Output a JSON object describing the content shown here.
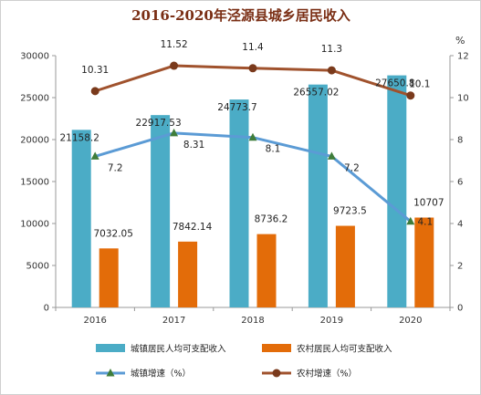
{
  "chart_data": {
    "type": "bar",
    "title": "2016-2020年泾源县城乡居民收入",
    "categories": [
      "2016",
      "2017",
      "2018",
      "2019",
      "2020"
    ],
    "y_left": {
      "range": [
        0,
        30000
      ],
      "ticks": [
        "0",
        "5000",
        "10000",
        "15000",
        "20000",
        "25000",
        "30000"
      ]
    },
    "y_right": {
      "range": [
        0,
        12
      ],
      "ticks": [
        "0",
        "2",
        "4",
        "6",
        "8",
        "10",
        "12"
      ],
      "unit": "%"
    },
    "grid": false,
    "legend_position": "bottom",
    "series": [
      {
        "name": "城镇居民人均可支配收入",
        "kind": "bar",
        "axis": "left",
        "color": "#4bacc6",
        "values": [
          21158.2,
          22917.53,
          24773.7,
          26557.02,
          27650.8
        ],
        "labels": [
          "21158.2",
          "22917.53",
          "24773.7",
          "26557.02",
          "27650.8"
        ]
      },
      {
        "name": "农村居民人均可支配收入",
        "kind": "bar",
        "axis": "left",
        "color": "#e36c09",
        "values": [
          7032.05,
          7842.14,
          8736.2,
          9723.5,
          10707
        ],
        "labels": [
          "7032.05",
          "7842.14",
          "8736.2",
          "9723.5",
          "10707"
        ]
      },
      {
        "name": "城镇增速（%）",
        "kind": "line",
        "axis": "right",
        "color": "#5b9bd5",
        "marker": "triangle",
        "marker_color": "#3f7d3a",
        "values": [
          7.2,
          8.31,
          8.1,
          7.2,
          4.1
        ],
        "labels": [
          "7.2",
          "8.31",
          "8.1",
          "7.2",
          "4.1"
        ]
      },
      {
        "name": "农村增速（%）",
        "kind": "line",
        "axis": "right",
        "color": "#a0522d",
        "marker": "circle",
        "marker_color": "#7a3a1c",
        "values": [
          10.31,
          11.52,
          11.4,
          11.3,
          10.1
        ],
        "labels": [
          "10.31",
          "11.52",
          "11.4",
          "11.3",
          "10.1"
        ]
      }
    ]
  }
}
